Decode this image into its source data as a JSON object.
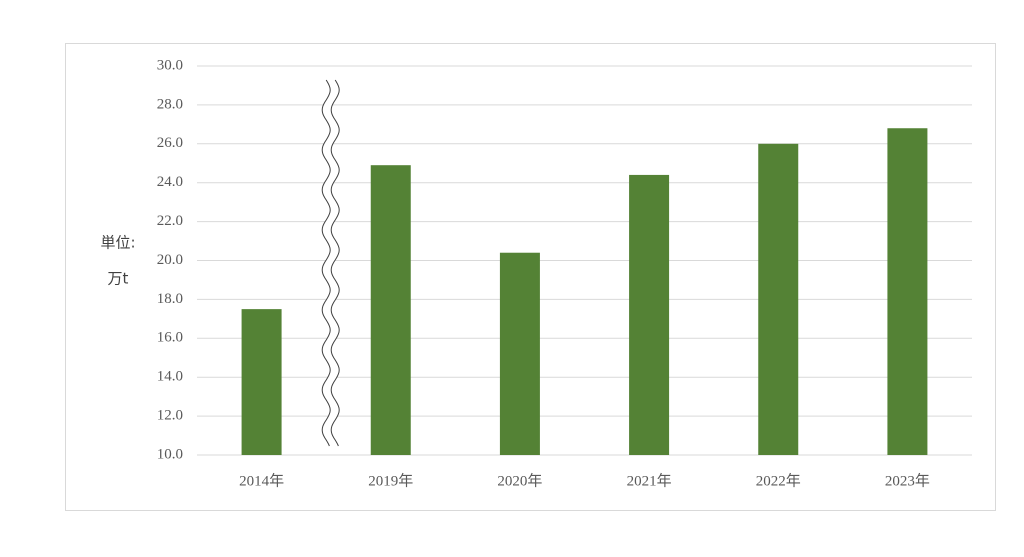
{
  "chart_data": {
    "type": "bar",
    "ylabel_lines": [
      "単位:",
      "万t"
    ],
    "categories": [
      "2014年",
      "2019年",
      "2020年",
      "2021年",
      "2022年",
      "2023年"
    ],
    "values": [
      17.5,
      24.9,
      20.4,
      24.4,
      26.0,
      26.8
    ],
    "color": "#548235",
    "ylim": [
      10,
      30
    ],
    "yticks": [
      {
        "value": 10,
        "label": "10.0"
      },
      {
        "value": 12,
        "label": "12.0"
      },
      {
        "value": 14,
        "label": "14.0"
      },
      {
        "value": 16,
        "label": "16.0"
      },
      {
        "value": 18,
        "label": "18.0"
      },
      {
        "value": 20,
        "label": "20.0"
      },
      {
        "value": 22,
        "label": "22.0"
      },
      {
        "value": 24,
        "label": "24.0"
      },
      {
        "value": 26,
        "label": "26.0"
      },
      {
        "value": 28,
        "label": "28.0"
      },
      {
        "value": 30,
        "label": "30.0"
      }
    ],
    "grid": true
  }
}
